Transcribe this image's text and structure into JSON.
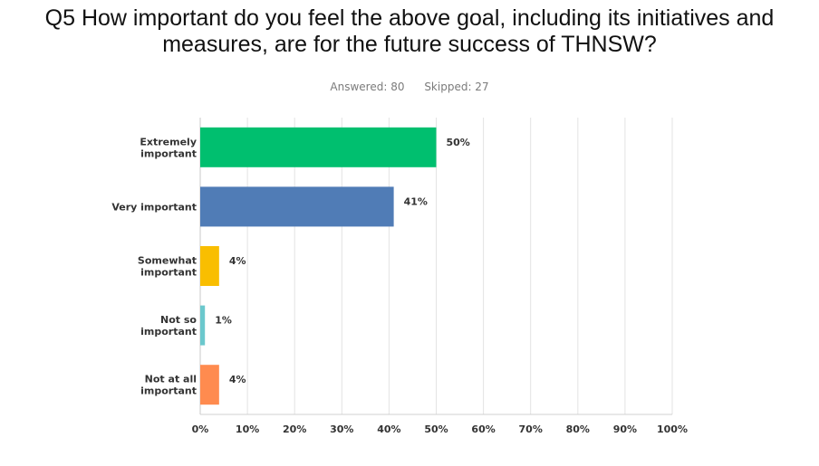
{
  "question": {
    "title_line1": "Q5 How important do you feel the above goal, including its initiatives and",
    "title_line2": "measures, are for the future success of THNSW?",
    "answered": "Answered: 80",
    "skipped": "Skipped: 27"
  },
  "chart_data": {
    "type": "bar",
    "orientation": "horizontal",
    "categories": [
      [
        "Extremely",
        "important"
      ],
      [
        "Very important"
      ],
      [
        "Somewhat",
        "important"
      ],
      [
        "Not so",
        "important"
      ],
      [
        "Not at all",
        "important"
      ]
    ],
    "values": [
      50,
      41,
      4,
      1,
      4
    ],
    "labels": [
      "50%",
      "41%",
      "4%",
      "1%",
      "4%"
    ],
    "colors": [
      "#00bf6f",
      "#507cb6",
      "#f9be00",
      "#6bc8cd",
      "#ff8b4f"
    ],
    "xlim": [
      0,
      100
    ],
    "xticks": [
      "0%",
      "10%",
      "20%",
      "30%",
      "40%",
      "50%",
      "60%",
      "70%",
      "80%",
      "90%",
      "100%"
    ],
    "grid": true
  }
}
